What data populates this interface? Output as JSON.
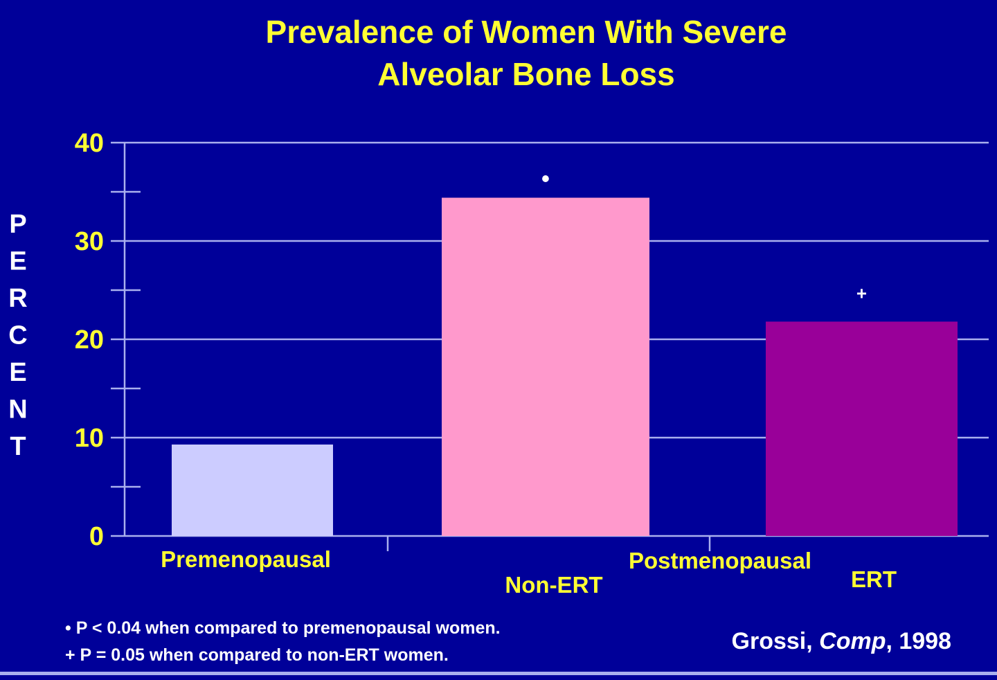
{
  "chart_data": {
    "type": "bar",
    "title": [
      "Prevalence of Women With Severe",
      "Alveolar Bone Loss"
    ],
    "ylabel": "PERCENT",
    "xlabel": "",
    "ylim": [
      0,
      40
    ],
    "yticks": [
      0,
      10,
      20,
      30,
      40
    ],
    "grid": true,
    "categories": [
      "Premenopausal",
      "Non-ERT",
      "ERT"
    ],
    "group_label": "Postmenopausal",
    "values": [
      9.3,
      34.4,
      21.8
    ],
    "colors": [
      "#ccccff",
      "#ff99cc",
      "#990099"
    ],
    "markers": [
      "",
      "•",
      "+"
    ],
    "footnotes": [
      "• P < 0.04 when compared to premenopausal women.",
      "+ P = 0.05 when compared to non-ERT women."
    ],
    "citation": {
      "author": "Grossi, ",
      "journal": "Comp",
      "year": ", 1998"
    }
  },
  "colors": {
    "background": "#000099",
    "text": "#ffff33",
    "grid": "#aab0ee"
  }
}
